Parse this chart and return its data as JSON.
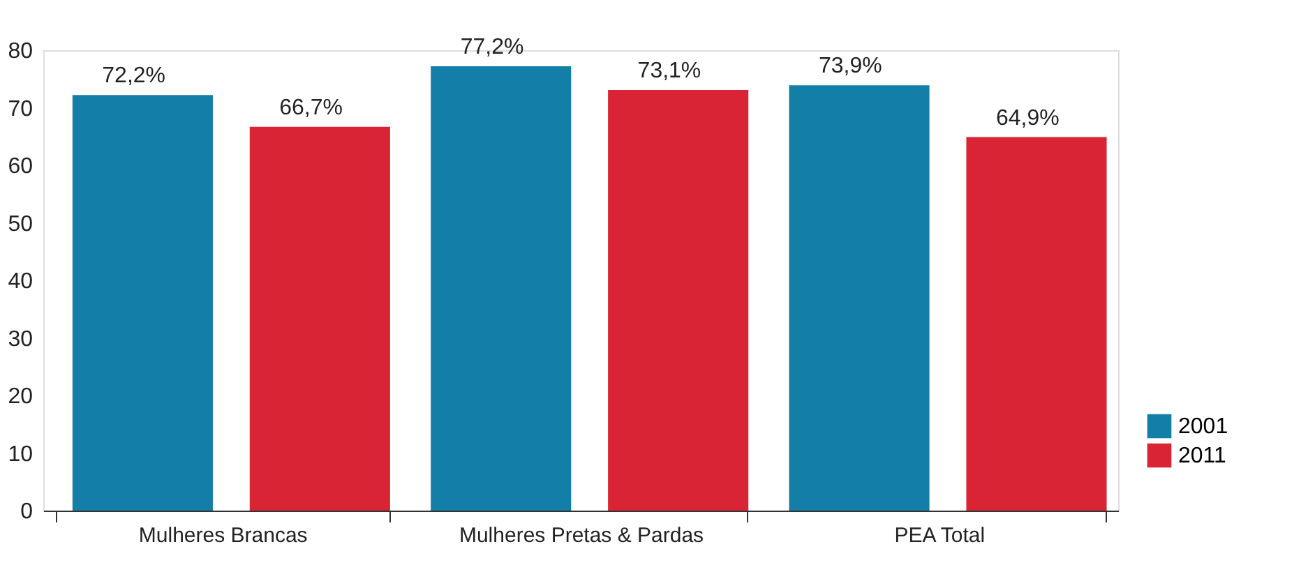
{
  "chart_data": {
    "type": "bar",
    "categories": [
      "Mulheres Brancas",
      "Mulheres Pretas & Pardas",
      "PEA Total"
    ],
    "series": [
      {
        "name": "2001",
        "color": "#137fa9",
        "values": [
          72.2,
          77.2,
          73.9
        ],
        "value_labels": [
          "72,2%",
          "77,2%",
          "73,9%"
        ]
      },
      {
        "name": "2011",
        "color": "#d92436",
        "values": [
          66.7,
          73.1,
          64.9
        ],
        "value_labels": [
          "66,7%",
          "73,1%",
          "64,9%"
        ]
      }
    ],
    "ylim": [
      0,
      80
    ],
    "yticks": [
      0,
      10,
      20,
      30,
      40,
      50,
      60,
      70,
      80
    ],
    "grid": false,
    "legend": "bottom right"
  }
}
